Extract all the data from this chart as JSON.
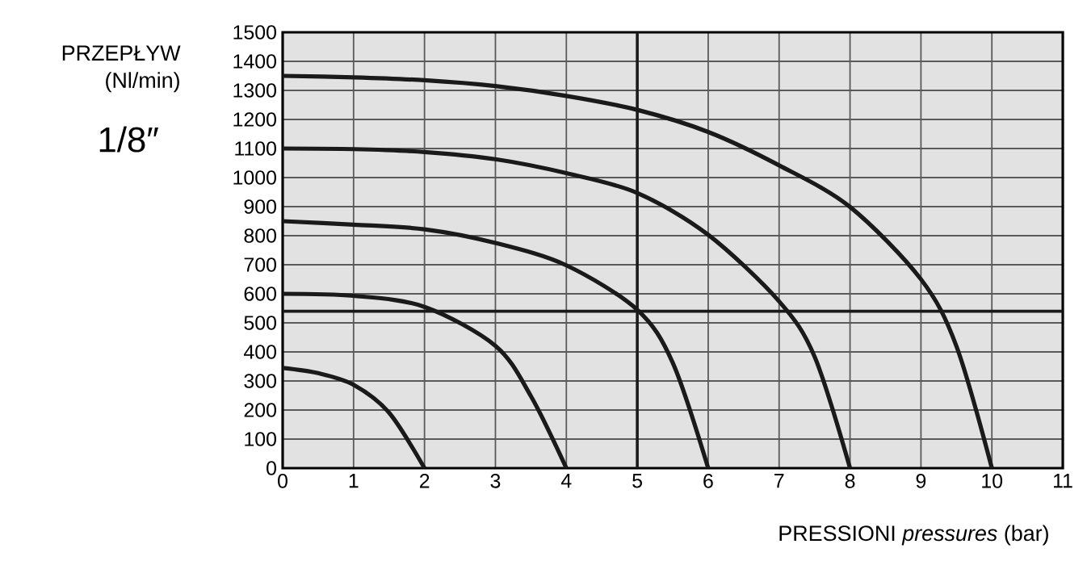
{
  "chart_data": {
    "type": "line",
    "xlabel": "PRESSIONI *pressures* (bar)",
    "ylabel": "PRZEPŁYW (Nl/min)",
    "annotations": [
      "1/8″"
    ],
    "xlim": [
      0,
      11
    ],
    "ylim": [
      0,
      1500
    ],
    "xticks": [
      0,
      1,
      2,
      3,
      4,
      5,
      6,
      7,
      8,
      9,
      10,
      11
    ],
    "yticks": [
      0,
      100,
      200,
      300,
      400,
      500,
      600,
      700,
      800,
      900,
      1000,
      1100,
      1200,
      1300,
      1400,
      1500
    ],
    "grid": true,
    "line_style": "solid",
    "ref_lines": [
      {
        "axis": "y",
        "value": 540,
        "color": "#1a1a1a"
      },
      {
        "axis": "x",
        "value": 5,
        "color": "#1a1a1a"
      }
    ],
    "series": [
      {
        "color": "#1a1a1a",
        "x": [
          0,
          0.5,
          1,
          1.5,
          2
        ],
        "values": [
          345,
          327,
          287,
          191,
          0
        ]
      },
      {
        "color": "#1a1a1a",
        "x": [
          0,
          1,
          2,
          3,
          3.5,
          4
        ],
        "values": [
          600,
          593,
          555,
          421,
          248,
          0
        ]
      },
      {
        "color": "#1a1a1a",
        "x": [
          0,
          1,
          2,
          3,
          4,
          5,
          5.5,
          6
        ],
        "values": [
          850,
          838,
          822,
          775,
          698,
          545,
          363,
          0
        ]
      },
      {
        "color": "#1a1a1a",
        "x": [
          0,
          1,
          2,
          3,
          4,
          5,
          6,
          7,
          7.5,
          8
        ],
        "values": [
          1100,
          1098,
          1088,
          1063,
          1015,
          947,
          803,
          574,
          384,
          0
        ]
      },
      {
        "color": "#1a1a1a",
        "x": [
          0,
          1,
          2,
          3,
          4,
          5,
          6,
          7,
          8,
          9,
          9.5,
          10
        ],
        "values": [
          1350,
          1345,
          1335,
          1315,
          1281,
          1233,
          1157,
          1042,
          899,
          650,
          420,
          0
        ]
      }
    ]
  }
}
